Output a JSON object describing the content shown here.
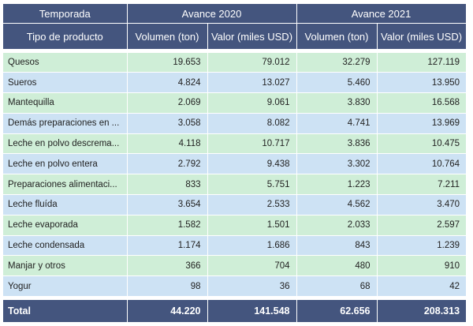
{
  "table": {
    "season_label": "Temporada",
    "group_2020": "Avance 2020",
    "group_2021": "Avance 2021",
    "col_product": "Tipo de producto",
    "col_vol_2020": "Volumen (ton)",
    "col_val_2020": "Valor (miles USD)",
    "col_vol_2021": "Volumen (ton)",
    "col_val_2021": "Valor (miles USD)",
    "rows": [
      {
        "name": "Quesos",
        "v20": "19.653",
        "u20": "79.012",
        "v21": "32.279",
        "u21": "127.119"
      },
      {
        "name": "Sueros",
        "v20": "4.824",
        "u20": "13.027",
        "v21": "5.460",
        "u21": "13.950"
      },
      {
        "name": "Mantequilla",
        "v20": "2.069",
        "u20": "9.061",
        "v21": "3.830",
        "u21": "16.568"
      },
      {
        "name": "Demás preparaciones en ...",
        "v20": "3.058",
        "u20": "8.082",
        "v21": "4.741",
        "u21": "13.969"
      },
      {
        "name": "Leche en polvo descrema...",
        "v20": "4.118",
        "u20": "10.717",
        "v21": "3.836",
        "u21": "10.475"
      },
      {
        "name": "Leche en polvo entera",
        "v20": "2.792",
        "u20": "9.438",
        "v21": "3.302",
        "u21": "10.764"
      },
      {
        "name": "Preparaciones alimentaci...",
        "v20": "833",
        "u20": "5.751",
        "v21": "1.223",
        "u21": "7.211"
      },
      {
        "name": "Leche fluída",
        "v20": "3.654",
        "u20": "2.533",
        "v21": "4.562",
        "u21": "3.470"
      },
      {
        "name": "Leche evaporada",
        "v20": "1.582",
        "u20": "1.501",
        "v21": "2.033",
        "u21": "2.597"
      },
      {
        "name": "Leche condensada",
        "v20": "1.174",
        "u20": "1.686",
        "v21": "843",
        "u21": "1.239"
      },
      {
        "name": "Manjar y otros",
        "v20": "366",
        "u20": "704",
        "v21": "480",
        "u21": "910"
      },
      {
        "name": "Yogur",
        "v20": "98",
        "u20": "36",
        "v21": "68",
        "u21": "42"
      }
    ],
    "total": {
      "name": "Total",
      "v20": "44.220",
      "u20": "141.548",
      "v21": "62.656",
      "u21": "208.313"
    }
  },
  "colors": {
    "header_bg": "#44557e",
    "row_green": "#cfeed7",
    "row_blue": "#cde2f4"
  }
}
